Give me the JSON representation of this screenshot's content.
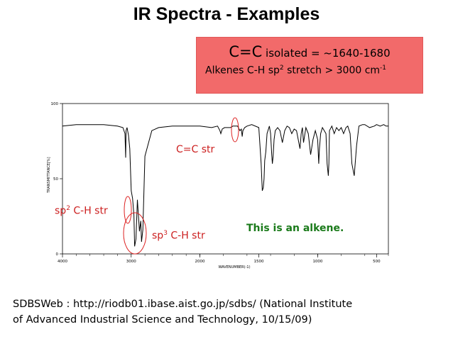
{
  "slide": {
    "title": "IR Spectra - Examples",
    "callout": {
      "line1_big": "C=C",
      "line1_rest": " isolated = ~1640-1680",
      "line2_a": "Alkenes C-H sp",
      "line2_sup": "2",
      "line2_b": "  stretch > 3000 cm",
      "line2_sup2": "-1",
      "background": "#f26a6a"
    },
    "annotations": {
      "cc_str": "C=C str",
      "sp2_pre": "sp",
      "sp2_sup": "2",
      "sp2_post": " C-H str",
      "sp3_pre": "sp",
      "sp3_sup": "3",
      "sp3_post": " C-H str",
      "conclusion": "This is an alkene."
    },
    "source_line1": "SDBSWeb : http://riodb01.ibase.aist.go.jp/sdbs/ (National Institute",
    "source_line2": "of Advanced Industrial Science and Technology, 10/15/09)"
  },
  "chart_data": {
    "type": "line",
    "title": "",
    "xlabel": "WAVENUMBER(-1)",
    "ylabel": "TRANSMITTANCE[%]",
    "xlim": [
      4000,
      400
    ],
    "ylim": [
      0,
      100
    ],
    "x_ticks": [
      4000,
      3000,
      2000,
      1500,
      1000,
      500
    ],
    "y_ticks": [
      0,
      50,
      100
    ],
    "x_tick_labels": [
      "4000",
      "3000",
      "2000",
      "1500",
      "1000",
      "500"
    ],
    "y_tick_labels": [
      "0",
      "50",
      "100"
    ],
    "series": [
      {
        "x": [
          4000,
          3800,
          3600,
          3400,
          3200,
          3120,
          3090,
          3080,
          3075,
          3060,
          3040,
          3020,
          3000,
          2980,
          2960,
          2950,
          2930,
          2910,
          2880,
          2860,
          2850,
          2830,
          2800,
          2700,
          2600,
          2400,
          2200,
          2000,
          1900,
          1850,
          1830,
          1822,
          1810,
          1790,
          1760,
          1740,
          1720,
          1700,
          1680,
          1660,
          1648,
          1641,
          1635,
          1620,
          1600,
          1560,
          1500,
          1480,
          1470,
          1462,
          1455,
          1450,
          1440,
          1430,
          1410,
          1400,
          1390,
          1385,
          1378,
          1370,
          1360,
          1340,
          1320,
          1300,
          1280,
          1260,
          1240,
          1220,
          1200,
          1180,
          1150,
          1140,
          1130,
          1120,
          1100,
          1080,
          1060,
          1040,
          1020,
          1000,
          991,
          985,
          975,
          960,
          930,
          920,
          910,
          905,
          900,
          880,
          860,
          840,
          820,
          800,
          780,
          760,
          745,
          725,
          710,
          690,
          670,
          650,
          620,
          600,
          560,
          520,
          500,
          470,
          440,
          420,
          400
        ],
        "y": [
          85,
          86,
          86,
          86,
          85,
          84,
          80,
          64,
          82,
          84,
          79,
          70,
          42,
          37,
          26,
          5,
          10,
          36,
          15,
          22,
          8,
          16,
          65,
          82,
          84,
          85,
          85,
          85,
          84,
          85,
          82,
          80,
          83,
          84,
          84,
          84,
          85,
          85,
          85,
          82,
          83,
          78,
          82,
          84,
          85,
          86,
          84,
          60,
          42,
          44,
          50,
          62,
          68,
          80,
          85,
          80,
          66,
          60,
          65,
          76,
          82,
          84,
          82,
          74,
          82,
          85,
          84,
          80,
          83,
          82,
          70,
          80,
          84,
          74,
          84,
          80,
          66,
          76,
          82,
          76,
          60,
          70,
          80,
          84,
          80,
          60,
          52,
          60,
          82,
          85,
          80,
          84,
          82,
          84,
          80,
          84,
          85,
          80,
          60,
          52,
          72,
          85,
          86,
          86,
          84,
          85,
          86,
          85,
          86,
          85,
          85
        ]
      }
    ],
    "grid": false,
    "line_color": "#000000"
  }
}
